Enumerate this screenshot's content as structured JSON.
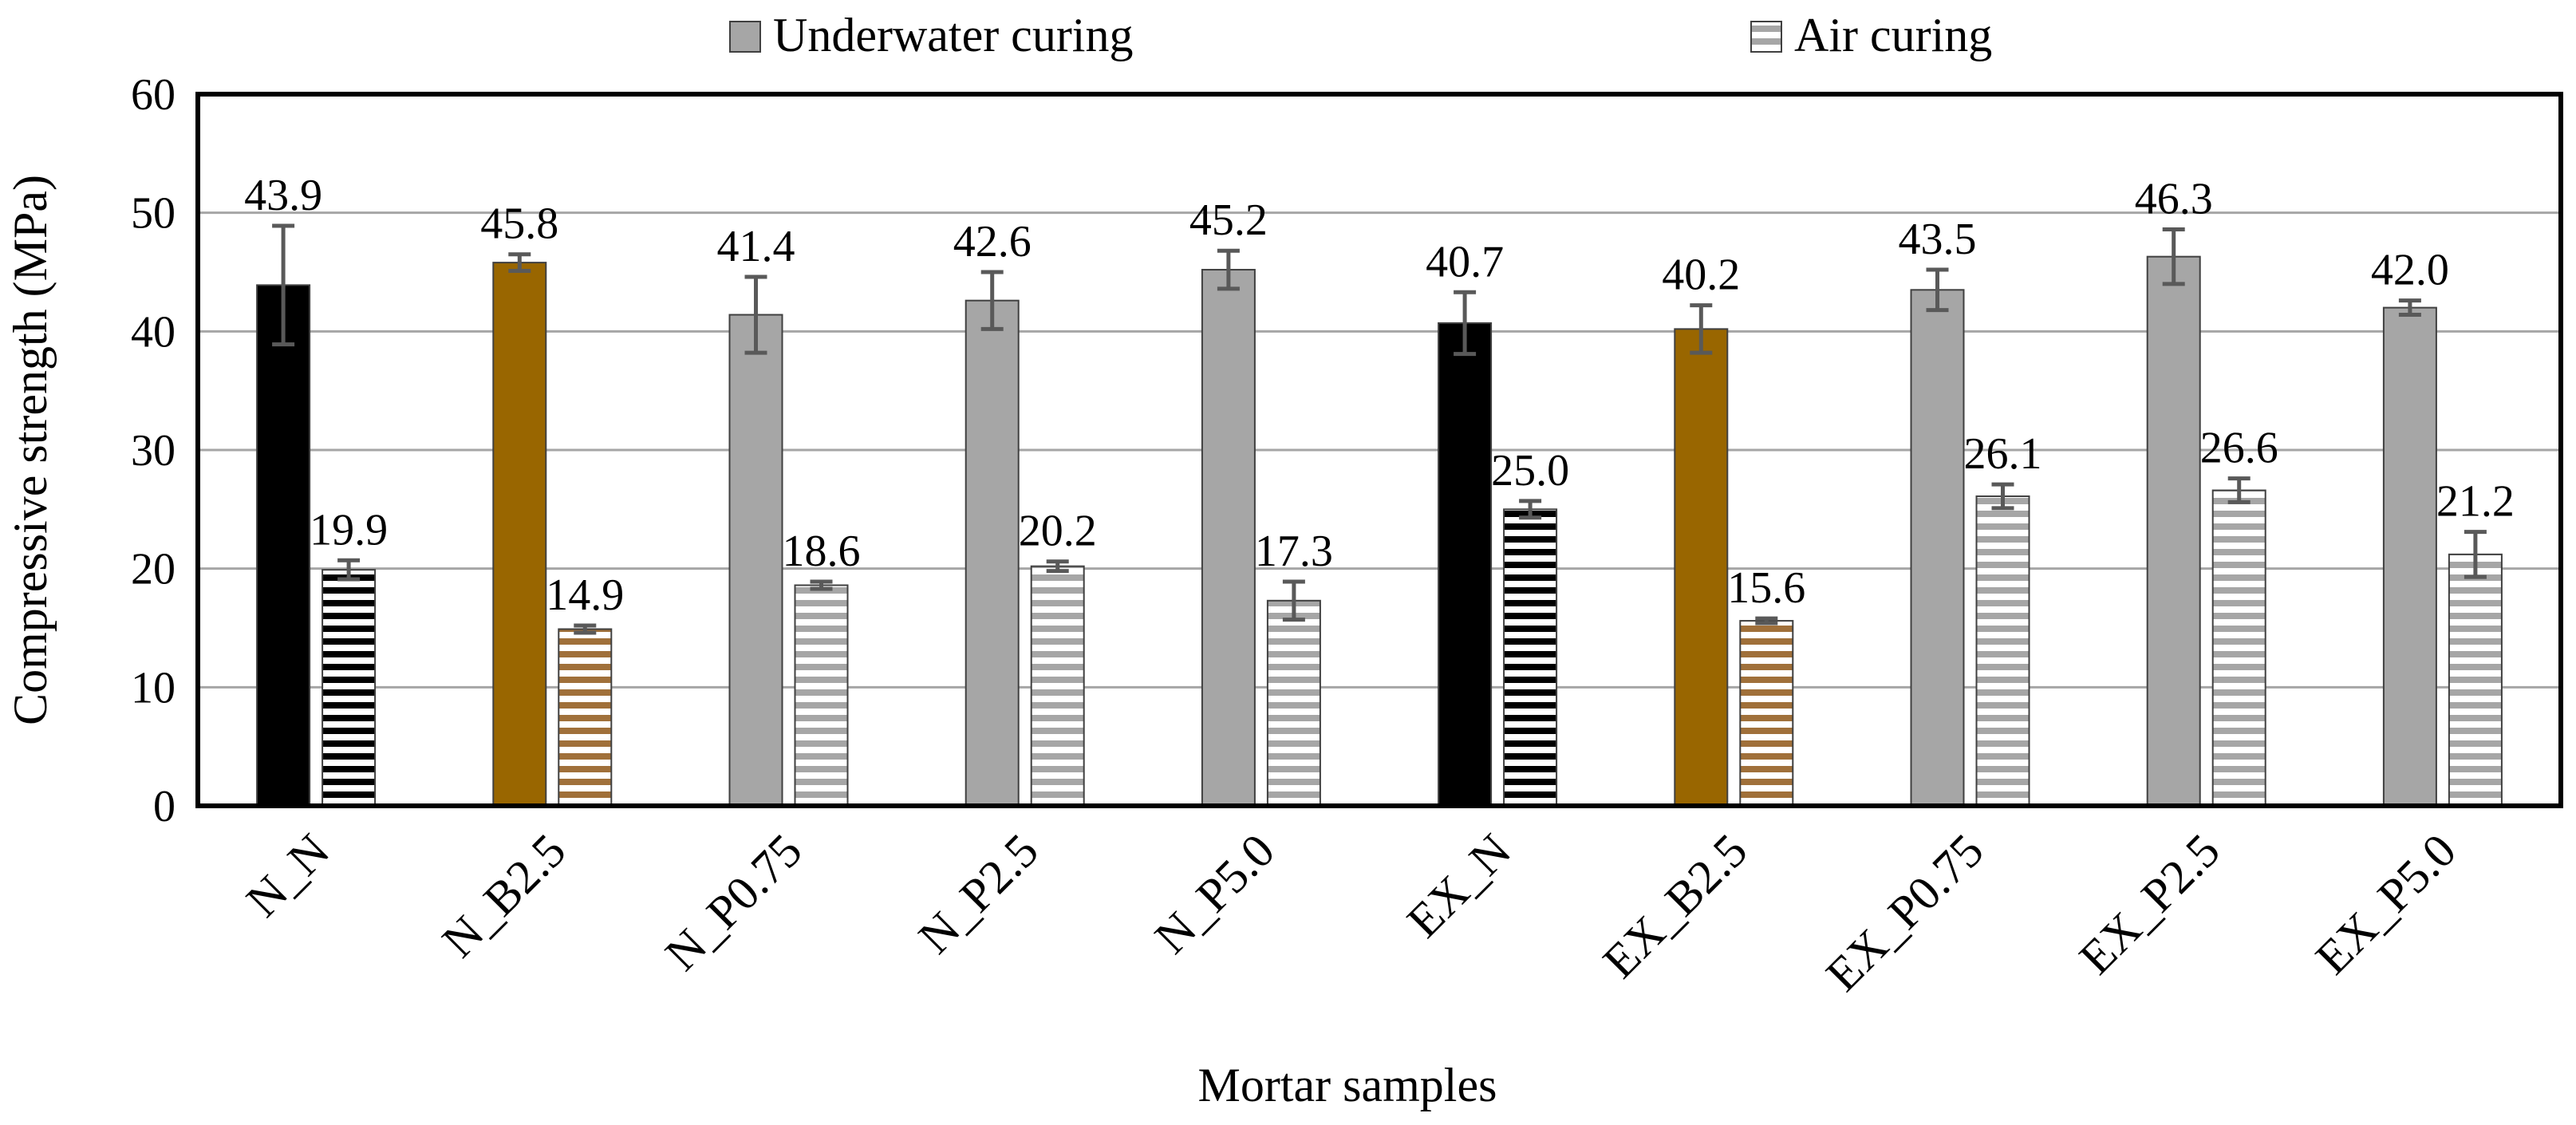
{
  "chart_data": {
    "type": "bar",
    "title": "",
    "xlabel": "Mortar samples",
    "ylabel": "Compressive strength (MPa)",
    "ylim": [
      0,
      60
    ],
    "yticks": [
      "0",
      "10",
      "20",
      "30",
      "40",
      "50",
      "60"
    ],
    "grid": true,
    "legend": {
      "placement": "top-center",
      "entries": [
        "Underwater curing",
        "Air curing"
      ]
    },
    "categories": [
      "N_N",
      "N_B2.5",
      "N_P0.75",
      "N_P2.5",
      "N_P5.0",
      "EX_N",
      "EX_B2.5",
      "EX_P0.75",
      "EX_P2.5",
      "EX_P5.0"
    ],
    "series": [
      {
        "name": "Underwater curing",
        "pattern": "solid",
        "values": [
          43.9,
          45.8,
          41.4,
          42.6,
          45.2,
          40.7,
          40.2,
          43.5,
          46.3,
          42.0
        ],
        "labels": [
          "43.9",
          "45.8",
          "41.4",
          "42.6",
          "45.2",
          "40.7",
          "40.2",
          "43.5",
          "46.3",
          "42.0"
        ],
        "errors": [
          5.0,
          0.7,
          3.2,
          2.4,
          1.6,
          2.6,
          2.0,
          1.7,
          2.3,
          0.6
        ]
      },
      {
        "name": "Air curing",
        "pattern": "horizontal-stripes",
        "values": [
          19.9,
          14.9,
          18.6,
          20.2,
          17.3,
          25.0,
          15.6,
          26.1,
          26.6,
          21.2
        ],
        "labels": [
          "19.9",
          "14.9",
          "18.6",
          "20.2",
          "17.3",
          "25.0",
          "15.6",
          "26.1",
          "26.6",
          "21.2"
        ],
        "errors": [
          0.8,
          0.3,
          0.3,
          0.4,
          1.6,
          0.7,
          0.2,
          1.0,
          1.0,
          1.9
        ]
      }
    ],
    "colors": {
      "gray": "#a6a6a6",
      "black": "#000000",
      "brown": "#996600",
      "brown_stripe": "#a0703a",
      "error_bar": "#595959",
      "grid": "#a6a6a6",
      "bar_outline": "#404040"
    },
    "category_colors": [
      "black",
      "brown",
      "gray",
      "gray",
      "gray",
      "black",
      "brown",
      "gray",
      "gray",
      "gray"
    ]
  }
}
